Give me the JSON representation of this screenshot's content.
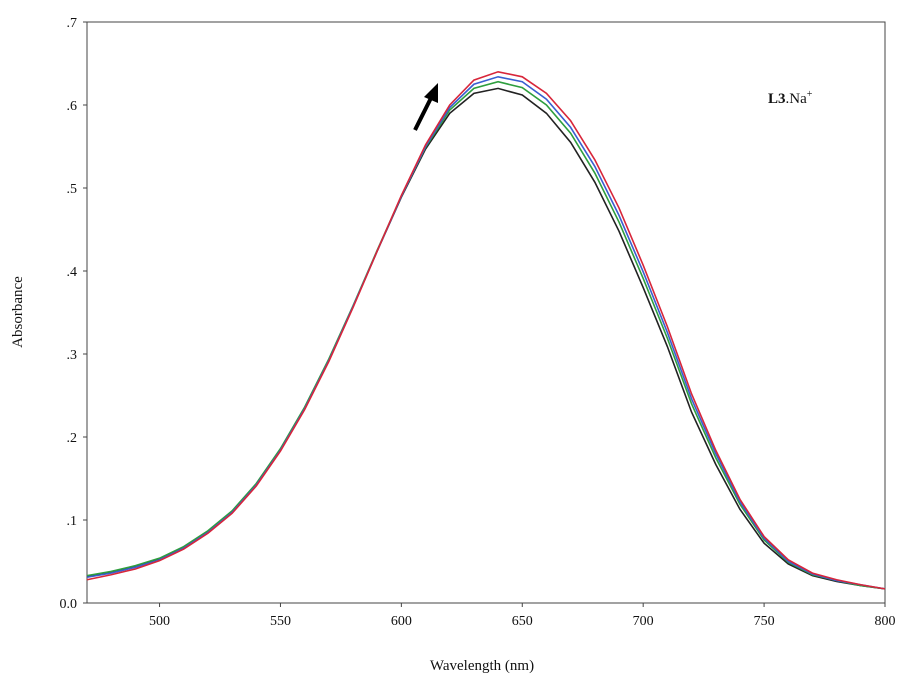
{
  "chart_data": {
    "type": "line",
    "xlabel": "Wavelength (nm)",
    "ylabel": "Absorbance",
    "annotation": {
      "bold": "L3",
      "text": ".Na",
      "sup": "+"
    },
    "x": [
      470,
      480,
      490,
      500,
      510,
      520,
      530,
      540,
      550,
      560,
      570,
      580,
      590,
      600,
      610,
      620,
      630,
      640,
      650,
      660,
      670,
      680,
      690,
      700,
      710,
      720,
      730,
      740,
      750,
      760,
      770,
      780,
      790,
      800
    ],
    "series": [
      {
        "color": "#222222",
        "values": [
          0.032,
          0.037,
          0.044,
          0.053,
          0.067,
          0.086,
          0.11,
          0.143,
          0.185,
          0.235,
          0.293,
          0.357,
          0.424,
          0.489,
          0.547,
          0.59,
          0.614,
          0.62,
          0.612,
          0.59,
          0.555,
          0.507,
          0.448,
          0.38,
          0.309,
          0.23,
          0.167,
          0.113,
          0.072,
          0.047,
          0.033,
          0.026,
          0.021,
          0.017
        ]
      },
      {
        "color": "#2e9e3e",
        "values": [
          0.033,
          0.038,
          0.045,
          0.054,
          0.068,
          0.087,
          0.111,
          0.144,
          0.186,
          0.236,
          0.294,
          0.358,
          0.425,
          0.49,
          0.549,
          0.594,
          0.62,
          0.628,
          0.621,
          0.6,
          0.566,
          0.518,
          0.459,
          0.391,
          0.319,
          0.24,
          0.175,
          0.119,
          0.076,
          0.049,
          0.034,
          0.027,
          0.021,
          0.017
        ]
      },
      {
        "color": "#3a5fd0",
        "values": [
          0.031,
          0.036,
          0.043,
          0.052,
          0.066,
          0.085,
          0.109,
          0.142,
          0.184,
          0.234,
          0.292,
          0.357,
          0.424,
          0.49,
          0.55,
          0.597,
          0.625,
          0.634,
          0.628,
          0.607,
          0.573,
          0.526,
          0.467,
          0.399,
          0.326,
          0.246,
          0.18,
          0.122,
          0.078,
          0.05,
          0.035,
          0.027,
          0.022,
          0.017
        ]
      },
      {
        "color": "#d8263a",
        "values": [
          0.028,
          0.034,
          0.041,
          0.051,
          0.065,
          0.084,
          0.108,
          0.141,
          0.183,
          0.233,
          0.291,
          0.356,
          0.424,
          0.491,
          0.552,
          0.6,
          0.63,
          0.64,
          0.634,
          0.614,
          0.581,
          0.534,
          0.476,
          0.407,
          0.333,
          0.252,
          0.184,
          0.125,
          0.08,
          0.052,
          0.036,
          0.028,
          0.022,
          0.017
        ]
      }
    ],
    "xlim": [
      470,
      800
    ],
    "ylim": [
      0,
      0.7
    ],
    "xticks": [
      500,
      550,
      600,
      650,
      700,
      750,
      800
    ],
    "yticks": [
      {
        "value": 0,
        "label": "0.0"
      },
      {
        "value": 0.1,
        "label": ".1"
      },
      {
        "value": 0.2,
        "label": ".2"
      },
      {
        "value": 0.3,
        "label": ".3"
      },
      {
        "value": 0.4,
        "label": ".4"
      },
      {
        "value": 0.5,
        "label": ".5"
      },
      {
        "value": 0.6,
        "label": ".6"
      },
      {
        "value": 0.7,
        "label": ".7"
      }
    ]
  }
}
